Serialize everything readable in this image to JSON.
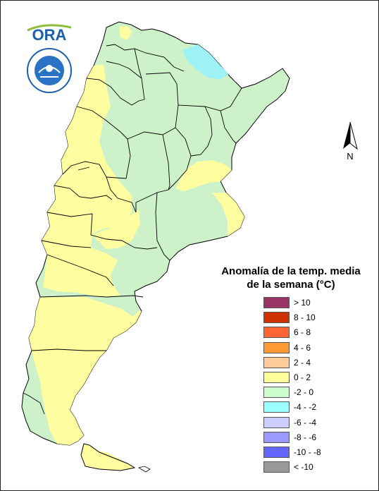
{
  "logos": {
    "ora_text": "ORA",
    "ora_colors": [
      "#8dbf3c",
      "#1f5fa8"
    ]
  },
  "map": {
    "fill_colors": {
      "yellow": "#fefea0",
      "green": "#cdf2c9",
      "cyan": "#9ef2f5"
    },
    "border_color": "#000000"
  },
  "north_arrow": {
    "label": "N"
  },
  "legend": {
    "title_line1": "Anomalía de la temp. media",
    "title_line2": "de la semana (°C)",
    "items": [
      {
        "label": "> 10",
        "color": "#993366"
      },
      {
        "label": "8 - 10",
        "color": "#cc3300"
      },
      {
        "label": "6 - 8",
        "color": "#ff6633"
      },
      {
        "label": "4 - 6",
        "color": "#ff9933"
      },
      {
        "label": "2 - 4",
        "color": "#ffcc99"
      },
      {
        "label": "0 - 2",
        "color": "#ffff99"
      },
      {
        "label": "-2 - 0",
        "color": "#ccffcc"
      },
      {
        "label": "-4 - -2",
        "color": "#99ffff"
      },
      {
        "label": "-6 - -4",
        "color": "#ccccff"
      },
      {
        "label": "-8 - -6",
        "color": "#9999ff"
      },
      {
        "label": "-10 - -8",
        "color": "#6666ff"
      },
      {
        "label": "< -10",
        "color": "#999999"
      }
    ]
  }
}
